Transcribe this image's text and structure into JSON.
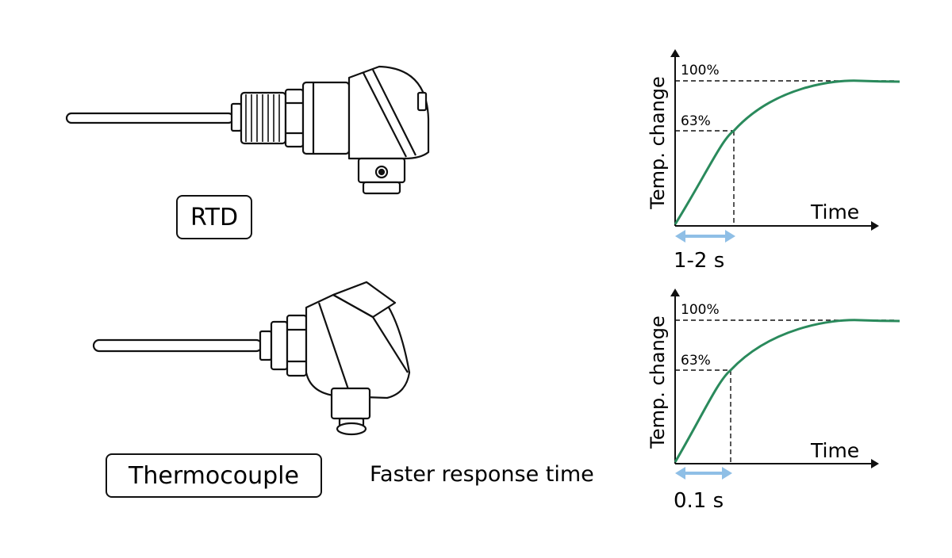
{
  "sensors": {
    "rtd": {
      "label": "RTD"
    },
    "thermocouple": {
      "label": "Thermocouple"
    }
  },
  "comparison_text": "Faster response time",
  "charts": [
    {
      "id": "rtd",
      "ylabel": "Temp. change",
      "xlabel": "Time",
      "level_full": "100%",
      "level_tau": "63%",
      "response_time": "1-2 s",
      "tau_fraction": 0.63
    },
    {
      "id": "thermocouple",
      "ylabel": "Temp. change",
      "xlabel": "Time",
      "level_full": "100%",
      "level_tau": "63%",
      "response_time": "0.1 s",
      "tau_fraction": 0.63
    }
  ],
  "colors": {
    "curve": "#2a8a5c",
    "arrow": "#8fbfe6",
    "stroke": "#111111"
  }
}
